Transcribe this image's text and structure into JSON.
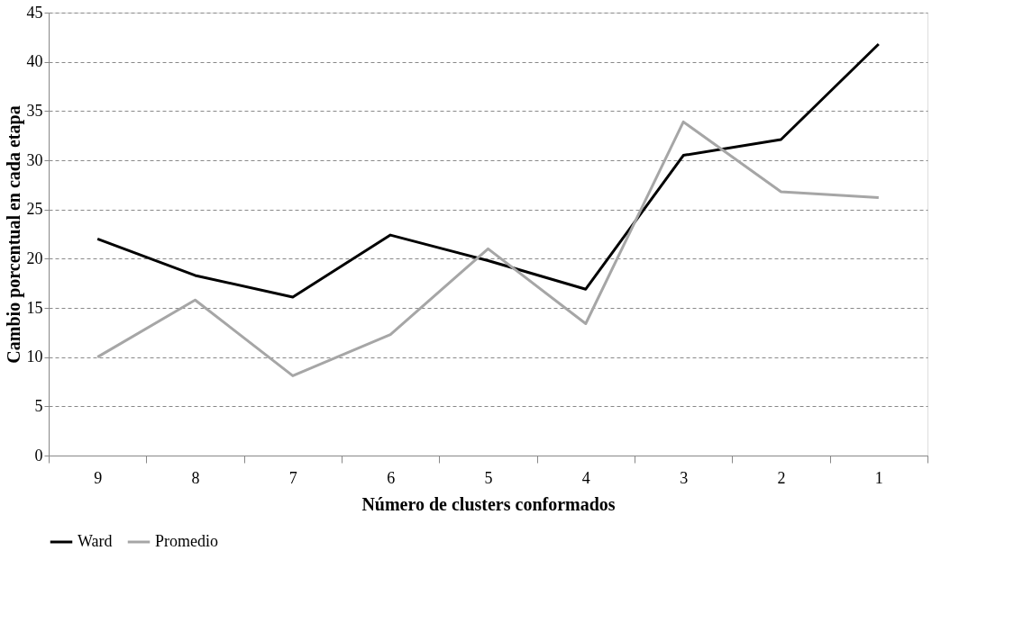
{
  "chart_data": {
    "type": "line",
    "xlabel": "Número de clusters conformados",
    "ylabel": "Cambio porcentual en cada etapa",
    "categories": [
      "9",
      "8",
      "7",
      "6",
      "5",
      "4",
      "3",
      "2",
      "1"
    ],
    "series": [
      {
        "name": "Ward",
        "color": "#000000",
        "values": [
          22.0,
          18.3,
          16.1,
          22.4,
          19.8,
          16.9,
          30.5,
          32.1,
          41.8
        ]
      },
      {
        "name": "Promedio",
        "color": "#a6a6a6",
        "values": [
          10.0,
          15.8,
          8.1,
          12.3,
          21.0,
          13.4,
          33.9,
          26.8,
          26.2
        ]
      }
    ],
    "ylim": [
      0,
      45
    ],
    "yticks": [
      0,
      5,
      10,
      15,
      20,
      25,
      30,
      35,
      40,
      45
    ],
    "grid": "y",
    "legend": "bottom",
    "marker": "none",
    "line_style": "solid"
  }
}
